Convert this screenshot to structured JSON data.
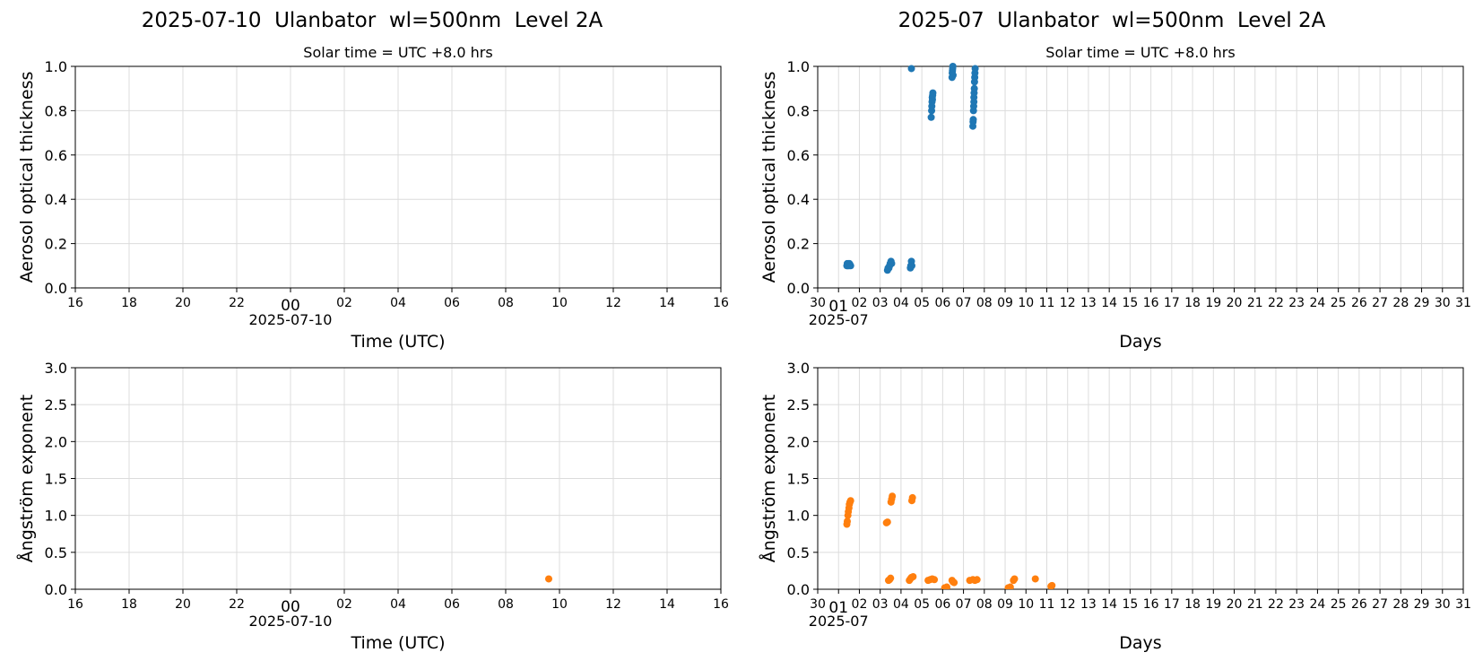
{
  "figure": {
    "left_title": "2025-07-10  Ulanbator  wl=500nm  Level 2A",
    "right_title": "2025-07  Ulanbator  wl=500nm  Level 2A",
    "subtitle": "Solar time = UTC +8.0 hrs"
  },
  "colors": {
    "aod": "#1f77b4",
    "angstrom": "#ff7f0e",
    "grid": "#dcdcdc"
  },
  "chart_data": [
    {
      "id": "daily-aod",
      "type": "scatter",
      "title": "Solar time = UTC +8.0 hrs",
      "xlabel": "Time (UTC)",
      "ylabel": "Aerosol optical thickness",
      "x_unit": "hours since 2025-07-10 00:00 UTC",
      "xlim": [
        -8,
        16
      ],
      "ylim": [
        0,
        1
      ],
      "yticks": [
        "0.0",
        "0.2",
        "0.4",
        "0.6",
        "0.8",
        "1.0"
      ],
      "xticks": [
        "16",
        "18",
        "20",
        "22",
        "00",
        "02",
        "04",
        "06",
        "08",
        "10",
        "12",
        "14",
        "16"
      ],
      "x_date_label": "2025-07-10",
      "grid": true,
      "series": [
        {
          "color": "#1f77b4",
          "points": []
        }
      ]
    },
    {
      "id": "monthly-aod",
      "type": "scatter",
      "title": "Solar time = UTC +8.0 hrs",
      "xlabel": "Days",
      "ylabel": "Aerosol optical thickness",
      "x_unit": "day of July 2025",
      "xlim": [
        0,
        31
      ],
      "ylim": [
        0,
        1
      ],
      "yticks": [
        "0.0",
        "0.2",
        "0.4",
        "0.6",
        "0.8",
        "1.0"
      ],
      "xticks": [
        "30",
        "01",
        "02",
        "03",
        "04",
        "05",
        "06",
        "07",
        "08",
        "09",
        "10",
        "11",
        "12",
        "13",
        "14",
        "15",
        "16",
        "17",
        "18",
        "19",
        "20",
        "21",
        "22",
        "23",
        "24",
        "25",
        "26",
        "27",
        "28",
        "29",
        "30",
        "31"
      ],
      "x_date_label": "2025-07",
      "grid": true,
      "series": [
        {
          "color": "#1f77b4",
          "points": [
            [
              1.4,
              0.1
            ],
            [
              1.42,
              0.11
            ],
            [
              1.44,
              0.1
            ],
            [
              1.46,
              0.105
            ],
            [
              1.48,
              0.11
            ],
            [
              1.5,
              0.1
            ],
            [
              1.52,
              0.11
            ],
            [
              1.55,
              0.105
            ],
            [
              1.58,
              0.1
            ],
            [
              3.35,
              0.08
            ],
            [
              3.38,
              0.09
            ],
            [
              3.42,
              0.09
            ],
            [
              3.45,
              0.1
            ],
            [
              3.48,
              0.11
            ],
            [
              3.52,
              0.12
            ],
            [
              3.55,
              0.11
            ],
            [
              4.45,
              0.09
            ],
            [
              4.47,
              0.1
            ],
            [
              4.5,
              0.12
            ],
            [
              4.52,
              0.1
            ],
            [
              4.5,
              0.99
            ],
            [
              5.45,
              0.77
            ],
            [
              5.47,
              0.8
            ],
            [
              5.48,
              0.82
            ],
            [
              5.49,
              0.84
            ],
            [
              5.5,
              0.86
            ],
            [
              5.51,
              0.85
            ],
            [
              5.52,
              0.87
            ],
            [
              5.53,
              0.88
            ],
            [
              6.45,
              0.95
            ],
            [
              6.46,
              0.97
            ],
            [
              6.47,
              0.98
            ],
            [
              6.48,
              0.99
            ],
            [
              6.49,
              1.0
            ],
            [
              6.5,
              0.96
            ],
            [
              7.45,
              0.73
            ],
            [
              7.46,
              0.75
            ],
            [
              7.47,
              0.76
            ],
            [
              7.48,
              0.8
            ],
            [
              7.49,
              0.82
            ],
            [
              7.5,
              0.84
            ],
            [
              7.5,
              0.86
            ],
            [
              7.51,
              0.88
            ],
            [
              7.52,
              0.9
            ],
            [
              7.53,
              0.93
            ],
            [
              7.54,
              0.95
            ],
            [
              7.55,
              0.97
            ],
            [
              7.56,
              0.99
            ]
          ]
        }
      ]
    },
    {
      "id": "daily-angstrom",
      "type": "scatter",
      "xlabel": "Time (UTC)",
      "ylabel": "Ångström exponent",
      "x_unit": "hours since 2025-07-10 00:00 UTC",
      "xlim": [
        -8,
        16
      ],
      "ylim": [
        0,
        3
      ],
      "yticks": [
        "0.0",
        "0.5",
        "1.0",
        "1.5",
        "2.0",
        "2.5",
        "3.0"
      ],
      "xticks": [
        "16",
        "18",
        "20",
        "22",
        "00",
        "02",
        "04",
        "06",
        "08",
        "10",
        "12",
        "14",
        "16"
      ],
      "x_date_label": "2025-07-10",
      "grid": true,
      "series": [
        {
          "color": "#ff7f0e",
          "points": [
            [
              9.6,
              0.14
            ]
          ]
        }
      ]
    },
    {
      "id": "monthly-angstrom",
      "type": "scatter",
      "xlabel": "Days",
      "ylabel": "Ångström exponent",
      "x_unit": "day of July 2025",
      "xlim": [
        0,
        31
      ],
      "ylim": [
        0,
        3
      ],
      "yticks": [
        "0.0",
        "0.5",
        "1.0",
        "1.5",
        "2.0",
        "2.5",
        "3.0"
      ],
      "xticks": [
        "30",
        "01",
        "02",
        "03",
        "04",
        "05",
        "06",
        "07",
        "08",
        "09",
        "10",
        "11",
        "12",
        "13",
        "14",
        "15",
        "16",
        "17",
        "18",
        "19",
        "20",
        "21",
        "22",
        "23",
        "24",
        "25",
        "26",
        "27",
        "28",
        "29",
        "30",
        "31"
      ],
      "x_date_label": "2025-07",
      "grid": true,
      "series": [
        {
          "color": "#ff7f0e",
          "points": [
            [
              1.4,
              0.88
            ],
            [
              1.42,
              0.92
            ],
            [
              1.45,
              1.0
            ],
            [
              1.47,
              1.05
            ],
            [
              1.5,
              1.1
            ],
            [
              1.52,
              1.15
            ],
            [
              1.55,
              1.18
            ],
            [
              1.58,
              1.2
            ],
            [
              3.3,
              0.9
            ],
            [
              3.35,
              0.91
            ],
            [
              3.4,
              0.12
            ],
            [
              3.45,
              0.13
            ],
            [
              3.5,
              0.15
            ],
            [
              3.52,
              1.18
            ],
            [
              3.55,
              1.22
            ],
            [
              3.58,
              1.26
            ],
            [
              4.4,
              0.12
            ],
            [
              4.45,
              0.14
            ],
            [
              4.5,
              0.16
            ],
            [
              4.52,
              1.2
            ],
            [
              4.55,
              1.24
            ],
            [
              4.58,
              0.17
            ],
            [
              5.3,
              0.12
            ],
            [
              5.4,
              0.13
            ],
            [
              5.5,
              0.14
            ],
            [
              5.6,
              0.13
            ],
            [
              6.1,
              0.02
            ],
            [
              6.2,
              0.03
            ],
            [
              6.45,
              0.12
            ],
            [
              6.5,
              0.1
            ],
            [
              6.55,
              0.09
            ],
            [
              7.3,
              0.12
            ],
            [
              7.45,
              0.13
            ],
            [
              7.55,
              0.12
            ],
            [
              7.65,
              0.13
            ],
            [
              9.15,
              0.02
            ],
            [
              9.25,
              0.03
            ],
            [
              9.4,
              0.12
            ],
            [
              9.45,
              0.14
            ],
            [
              10.45,
              0.14
            ],
            [
              11.2,
              0.04
            ],
            [
              11.25,
              0.05
            ]
          ]
        }
      ]
    }
  ]
}
